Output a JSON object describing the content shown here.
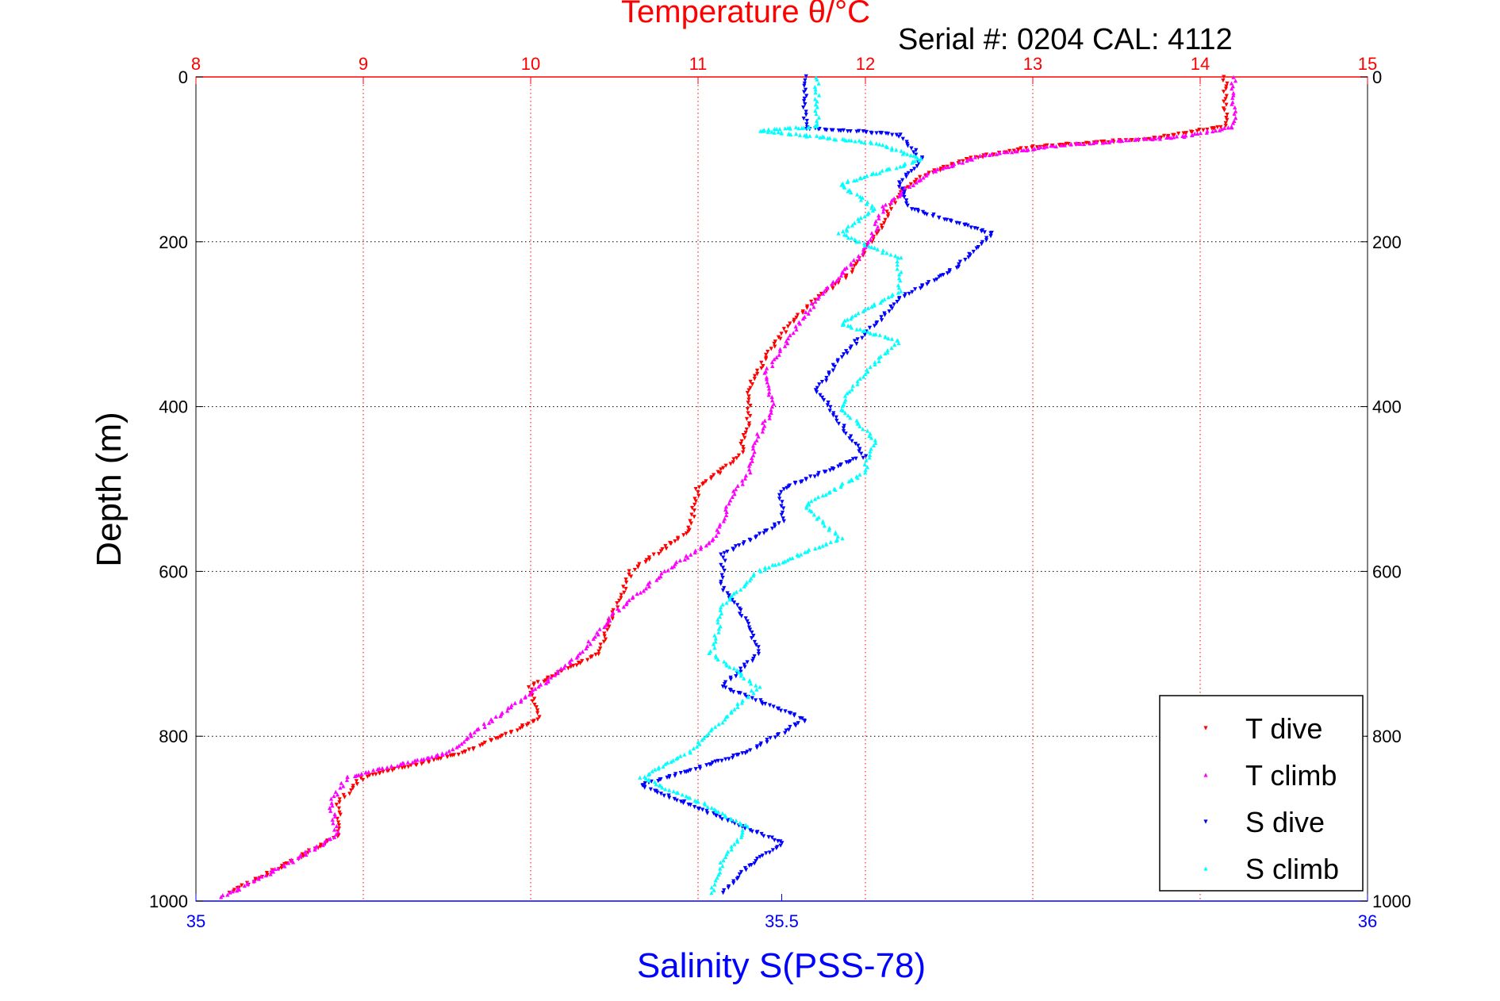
{
  "chart_data": {
    "type": "scatter",
    "title": "Temperature θ/°C",
    "subtitle": "Serial #: 0204  CAL: 4112",
    "xlabel": "Salinity S(PSS-78)",
    "ylabel": "Depth (m)",
    "top_axis": {
      "range": [
        8,
        15
      ],
      "ticks": [
        "8",
        "9",
        "10",
        "11",
        "12",
        "13",
        "14",
        "15"
      ],
      "color": "#ff0000"
    },
    "bottom_axis": {
      "range": [
        35,
        36
      ],
      "ticks": [
        "35",
        "35.5",
        "36"
      ],
      "color": "#0000ff"
    },
    "y_axis": {
      "range": [
        0,
        1000
      ],
      "reversed": true,
      "ticks": [
        "0",
        "200",
        "400",
        "600",
        "800",
        "1000"
      ]
    },
    "grid": true,
    "legend_position": "bottom-right",
    "series": [
      {
        "name": "T dive",
        "axis": "temperature",
        "color": "#ff0000",
        "marker": "triangle-down",
        "points": [
          [
            14.15,
            0
          ],
          [
            14.15,
            30
          ],
          [
            14.15,
            60
          ],
          [
            13.7,
            75
          ],
          [
            13.0,
            85
          ],
          [
            12.6,
            100
          ],
          [
            12.35,
            120
          ],
          [
            12.2,
            140
          ],
          [
            12.15,
            160
          ],
          [
            12.1,
            180
          ],
          [
            12.0,
            210
          ],
          [
            11.9,
            240
          ],
          [
            11.7,
            270
          ],
          [
            11.55,
            300
          ],
          [
            11.4,
            340
          ],
          [
            11.3,
            380
          ],
          [
            11.3,
            420
          ],
          [
            11.25,
            460
          ],
          [
            11.0,
            500
          ],
          [
            10.95,
            550
          ],
          [
            10.6,
            600
          ],
          [
            10.5,
            650
          ],
          [
            10.4,
            700
          ],
          [
            10.0,
            740
          ],
          [
            10.05,
            780
          ],
          [
            9.6,
            820
          ],
          [
            9.0,
            850
          ],
          [
            8.85,
            880
          ],
          [
            8.85,
            920
          ],
          [
            8.5,
            960
          ],
          [
            8.2,
            990
          ]
        ]
      },
      {
        "name": "T climb",
        "axis": "temperature",
        "color": "#ff00ff",
        "marker": "triangle-up",
        "points": [
          [
            14.2,
            0
          ],
          [
            14.2,
            30
          ],
          [
            14.2,
            60
          ],
          [
            13.9,
            72
          ],
          [
            13.2,
            82
          ],
          [
            12.7,
            95
          ],
          [
            12.4,
            115
          ],
          [
            12.25,
            135
          ],
          [
            12.1,
            160
          ],
          [
            12.05,
            190
          ],
          [
            11.95,
            220
          ],
          [
            11.75,
            260
          ],
          [
            11.6,
            300
          ],
          [
            11.5,
            330
          ],
          [
            11.4,
            360
          ],
          [
            11.45,
            400
          ],
          [
            11.35,
            440
          ],
          [
            11.3,
            480
          ],
          [
            11.2,
            510
          ],
          [
            11.1,
            560
          ],
          [
            10.8,
            600
          ],
          [
            10.5,
            650
          ],
          [
            10.3,
            700
          ],
          [
            10.05,
            740
          ],
          [
            9.7,
            790
          ],
          [
            9.5,
            820
          ],
          [
            8.9,
            850
          ],
          [
            8.8,
            880
          ],
          [
            8.85,
            920
          ],
          [
            8.5,
            960
          ],
          [
            8.15,
            995
          ]
        ]
      },
      {
        "name": "S dive",
        "axis": "salinity",
        "color": "#0000ff",
        "marker": "triangle-down",
        "points": [
          [
            35.52,
            0
          ],
          [
            35.52,
            30
          ],
          [
            35.52,
            62
          ],
          [
            35.6,
            70
          ],
          [
            35.62,
            100
          ],
          [
            35.6,
            130
          ],
          [
            35.61,
            160
          ],
          [
            35.68,
            190
          ],
          [
            35.65,
            230
          ],
          [
            35.6,
            270
          ],
          [
            35.58,
            300
          ],
          [
            35.55,
            340
          ],
          [
            35.53,
            380
          ],
          [
            35.55,
            420
          ],
          [
            35.57,
            460
          ],
          [
            35.5,
            500
          ],
          [
            35.5,
            540
          ],
          [
            35.45,
            580
          ],
          [
            35.45,
            620
          ],
          [
            35.47,
            660
          ],
          [
            35.48,
            700
          ],
          [
            35.45,
            740
          ],
          [
            35.52,
            780
          ],
          [
            35.47,
            820
          ],
          [
            35.38,
            860
          ],
          [
            35.45,
            900
          ],
          [
            35.5,
            930
          ],
          [
            35.47,
            960
          ],
          [
            35.45,
            990
          ]
        ]
      },
      {
        "name": "S climb",
        "axis": "salinity",
        "color": "#00ffff",
        "marker": "triangle-up",
        "points": [
          [
            35.53,
            0
          ],
          [
            35.53,
            30
          ],
          [
            35.53,
            60
          ],
          [
            35.48,
            65
          ],
          [
            35.58,
            80
          ],
          [
            35.62,
            100
          ],
          [
            35.55,
            130
          ],
          [
            35.58,
            160
          ],
          [
            35.55,
            190
          ],
          [
            35.6,
            220
          ],
          [
            35.6,
            260
          ],
          [
            35.55,
            300
          ],
          [
            35.6,
            320
          ],
          [
            35.57,
            360
          ],
          [
            35.55,
            400
          ],
          [
            35.58,
            440
          ],
          [
            35.57,
            480
          ],
          [
            35.52,
            520
          ],
          [
            35.55,
            560
          ],
          [
            35.48,
            600
          ],
          [
            35.45,
            640
          ],
          [
            35.44,
            700
          ],
          [
            35.48,
            740
          ],
          [
            35.45,
            780
          ],
          [
            35.42,
            820
          ],
          [
            35.38,
            850
          ],
          [
            35.43,
            880
          ],
          [
            35.47,
            910
          ],
          [
            35.45,
            950
          ],
          [
            35.44,
            990
          ]
        ]
      }
    ]
  }
}
